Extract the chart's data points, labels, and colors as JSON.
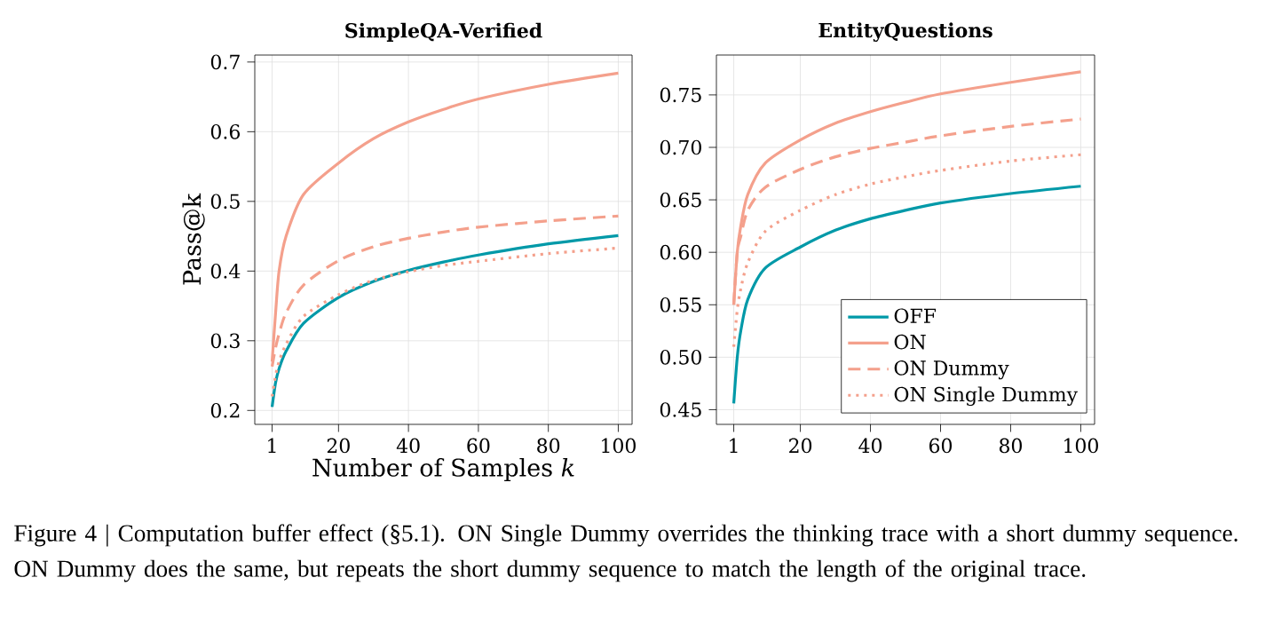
{
  "chart_data": [
    {
      "type": "line",
      "title": "SimpleQA-Verified",
      "xlabel": "Number of Samples *k*",
      "ylabel": "Pass@k",
      "xlim": [
        -3.95,
        103.95
      ],
      "ylim": [
        0.18,
        0.71
      ],
      "xticks": [
        1,
        20,
        40,
        60,
        80,
        100
      ],
      "yticks": [
        0.2,
        0.3,
        0.4,
        0.5,
        0.6,
        0.7
      ],
      "grid": true,
      "legend": false,
      "x": [
        1,
        2,
        3,
        5,
        10,
        20,
        30,
        40,
        50,
        60,
        80,
        100
      ],
      "series": [
        {
          "color": "#0099a8",
          "line_style": "solid",
          "values": [
            0.205,
            0.24,
            0.26,
            0.285,
            0.325,
            0.362,
            0.385,
            0.401,
            0.413,
            0.423,
            0.439,
            0.451
          ]
        },
        {
          "color": "#f4a08c",
          "line_style": "solid",
          "values": [
            0.27,
            0.34,
            0.4,
            0.45,
            0.51,
            0.555,
            0.59,
            0.614,
            0.632,
            0.647,
            0.668,
            0.684
          ]
        },
        {
          "color": "#f4a08c",
          "line_style": "dashed",
          "values": [
            0.263,
            0.29,
            0.31,
            0.34,
            0.38,
            0.415,
            0.435,
            0.447,
            0.456,
            0.463,
            0.472,
            0.479
          ]
        },
        {
          "color": "#f4a08c",
          "line_style": "dotted",
          "values": [
            0.22,
            0.25,
            0.27,
            0.295,
            0.335,
            0.366,
            0.387,
            0.399,
            0.408,
            0.414,
            0.425,
            0.433
          ]
        }
      ],
      "annotations": [
        "Figure 4 | Computation buffer effect (§5.1). ON Single Dummy overrides the thinking trace with a short dummy sequence. ON Dummy does the same, but repeats the short dummy sequence to match the length of the original trace."
      ]
    },
    {
      "type": "line",
      "title": "EntityQuestions",
      "xlim": [
        -3.95,
        103.95
      ],
      "ylim": [
        0.436,
        0.788
      ],
      "xticks": [
        1,
        20,
        40,
        60,
        80,
        100
      ],
      "yticks": [
        0.45,
        {
          "value": 0.5,
          "label": "0.50"
        },
        0.55,
        {
          "value": 0.6,
          "label": "0.60"
        },
        0.65,
        {
          "value": 0.7,
          "label": "0.70"
        },
        0.75
      ],
      "grid": true,
      "legend": "bottom right",
      "x": [
        1,
        2,
        3,
        5,
        10,
        20,
        30,
        40,
        50,
        60,
        80,
        100
      ],
      "series": [
        {
          "name": "OFF",
          "color": "#0099a8",
          "line_style": "solid",
          "values": [
            0.456,
            0.5,
            0.525,
            0.555,
            0.585,
            0.605,
            0.621,
            0.632,
            0.64,
            0.647,
            0.656,
            0.663
          ]
        },
        {
          "name": "ON",
          "color": "#f4a08c",
          "line_style": "solid",
          "values": [
            0.55,
            0.6,
            0.625,
            0.655,
            0.685,
            0.707,
            0.723,
            0.734,
            0.743,
            0.751,
            0.762,
            0.772
          ]
        },
        {
          "name": "ON Dummy",
          "color": "#f4a08c",
          "line_style": "dashed",
          "values": [
            0.55,
            0.6,
            0.615,
            0.64,
            0.662,
            0.679,
            0.691,
            0.699,
            0.705,
            0.711,
            0.72,
            0.727
          ]
        },
        {
          "name": "ON Single Dummy",
          "color": "#f4a08c",
          "line_style": "dotted",
          "values": [
            0.51,
            0.545,
            0.565,
            0.59,
            0.62,
            0.64,
            0.655,
            0.665,
            0.672,
            0.678,
            0.687,
            0.693
          ]
        }
      ]
    }
  ]
}
